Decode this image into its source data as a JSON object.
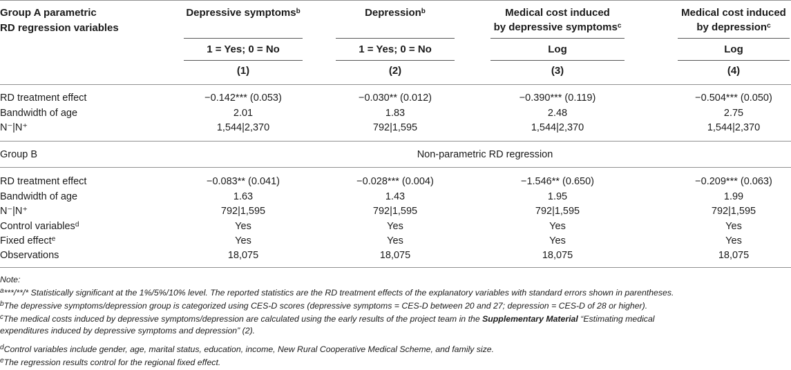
{
  "header": {
    "group_a_line1": "Group A parametric",
    "group_a_line2": "RD regression variables",
    "columns": [
      {
        "title_line1": "Depressive symptoms",
        "title_sup": "b",
        "title_line2": "",
        "title_line2_sup": "",
        "unit": "1 = Yes; 0 = No",
        "index": "(1)"
      },
      {
        "title_line1": "Depression",
        "title_sup": "b",
        "title_line2": "",
        "title_line2_sup": "",
        "unit": "1 = Yes; 0 = No",
        "index": "(2)"
      },
      {
        "title_line1": "Medical cost induced",
        "title_sup": "",
        "title_line2": "by depressive symptoms",
        "title_line2_sup": "c",
        "unit": "Log",
        "index": "(3)"
      },
      {
        "title_line1": "Medical cost induced",
        "title_sup": "",
        "title_line2": "by depression",
        "title_line2_sup": "c",
        "unit": "Log",
        "index": "(4)"
      }
    ]
  },
  "group_a": {
    "rows": [
      {
        "label": "RD treatment effect",
        "label_sup": "",
        "values": [
          "−0.142*** (0.053)",
          "−0.030** (0.012)",
          "−0.390*** (0.119)",
          "−0.504*** (0.050)"
        ]
      },
      {
        "label": "Bandwidth of age",
        "label_sup": "",
        "values": [
          "2.01",
          "1.83",
          "2.48",
          "2.75"
        ]
      },
      {
        "label": "N⁻|N⁺",
        "label_sup": "",
        "values": [
          "1,544|2,370",
          "792|1,595",
          "1,544|2,370",
          "1,544|2,370"
        ]
      }
    ]
  },
  "group_b": {
    "label": "Group B",
    "title": "Non-parametric RD regression",
    "rows": [
      {
        "label": "RD treatment effect",
        "label_sup": "",
        "values": [
          "−0.083** (0.041)",
          "−0.028*** (0.004)",
          "−1.546** (0.650)",
          "−0.209*** (0.063)"
        ]
      },
      {
        "label": "Bandwidth of age",
        "label_sup": "",
        "values": [
          "1.63",
          "1.43",
          "1.95",
          "1.99"
        ]
      },
      {
        "label": "N⁻|N⁺",
        "label_sup": "",
        "values": [
          "792|1,595",
          "792|1,595",
          "792|1,595",
          "792|1,595"
        ]
      },
      {
        "label": "Control variables",
        "label_sup": "d",
        "values": [
          "Yes",
          "Yes",
          "Yes",
          "Yes"
        ]
      },
      {
        "label": "Fixed effect",
        "label_sup": "e",
        "values": [
          "Yes",
          "Yes",
          "Yes",
          "Yes"
        ]
      },
      {
        "label": "Observations",
        "label_sup": "",
        "values": [
          "18,075",
          "18,075",
          "18,075",
          "18,075"
        ]
      }
    ]
  },
  "notes": {
    "title": "Note:",
    "a_sup": "a",
    "a_text": "***/**/* Statistically significant at the 1%/5%/10% level. The reported statistics are the RD treatment effects of the explanatory variables with standard errors shown in parentheses.",
    "b_sup": "b",
    "b_text": "The depressive symptoms/depression group is categorized using CES-D scores (depressive symptoms = CES-D between 20 and 27; depression = CES-D of 28 or higher).",
    "c_sup": "c",
    "c_text_pre": "The medical costs induced by depressive symptoms/depression are calculated using the early results of the project team in the ",
    "c_bold": "Supplementary Material",
    "c_text_post": " “Estimating medical",
    "c_line2": "expenditures induced by depressive symptoms and depression” (2).",
    "d_sup": "d",
    "d_text": "Control variables include gender, age, marital status, education, income, New Rural Cooperative Medical Scheme, and family size.",
    "e_sup": "e",
    "e_text": "The regression results control for the regional fixed effect."
  }
}
